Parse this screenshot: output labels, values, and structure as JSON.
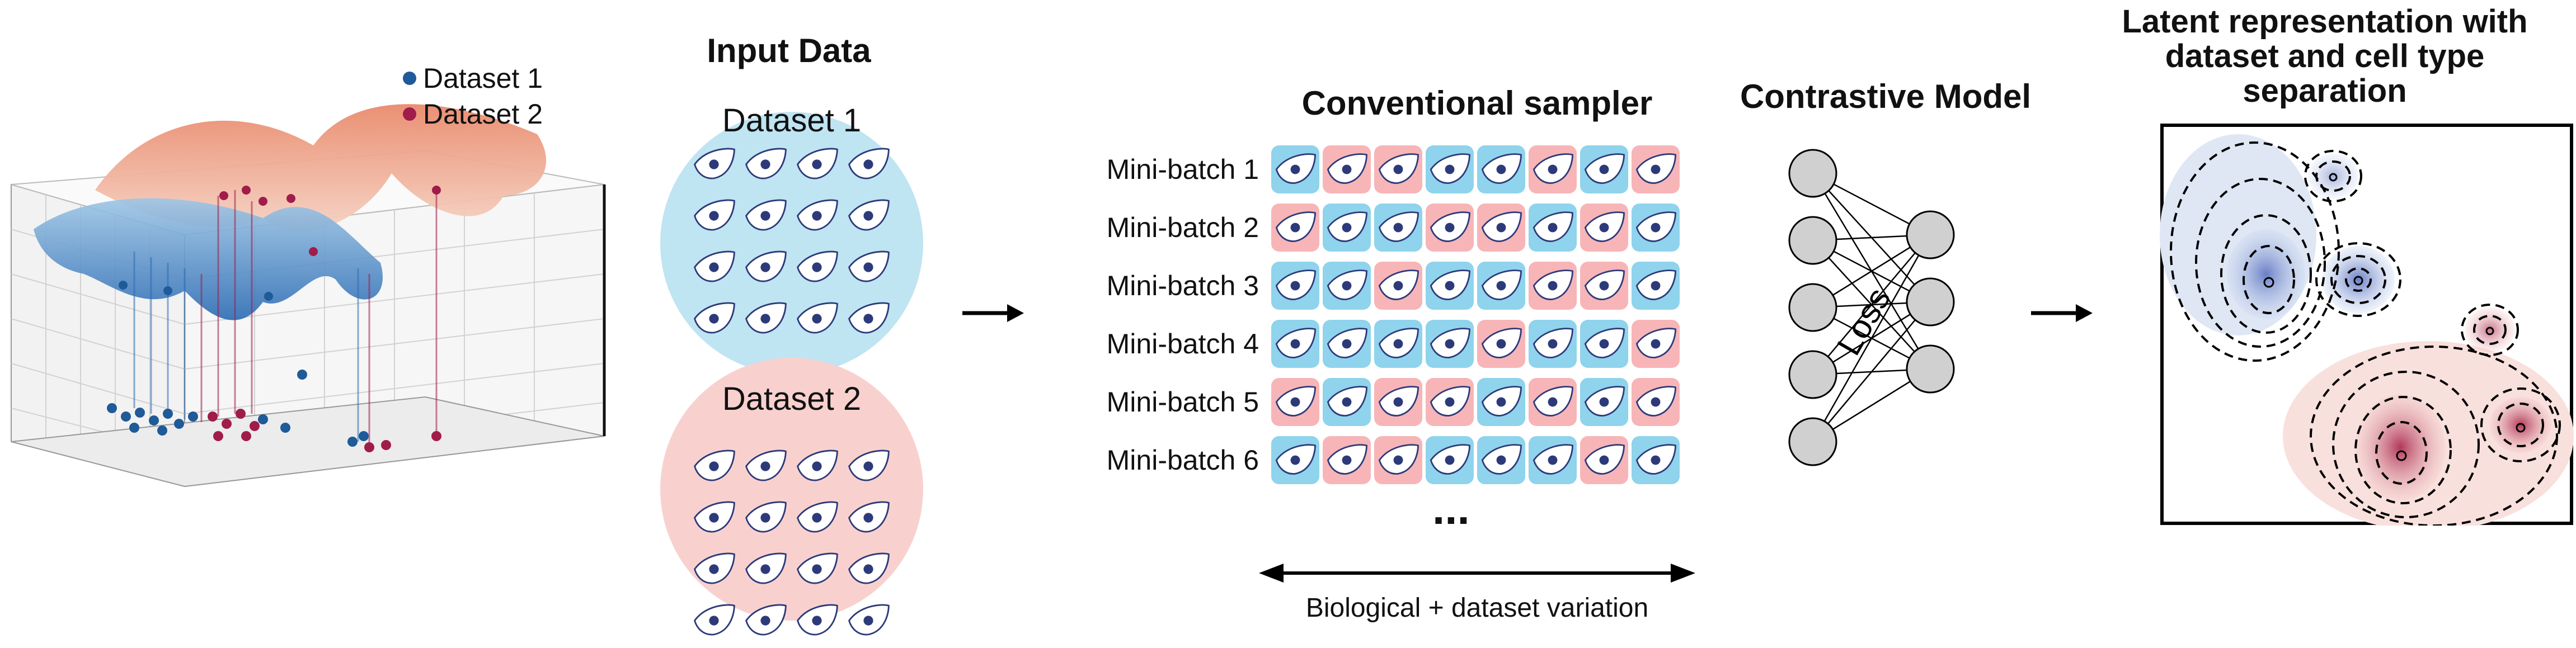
{
  "legend": {
    "items": [
      {
        "label": "Dataset 1",
        "color": "#1f5a99"
      },
      {
        "label": "Dataset 2",
        "color": "#a01c4b"
      }
    ]
  },
  "input_data": {
    "title": "Input Data",
    "dataset1": {
      "label": "Dataset 1",
      "color": "#bfe4f2"
    },
    "dataset2": {
      "label": "Dataset 2",
      "color": "#f8d1cf"
    }
  },
  "sampler": {
    "title": "Conventional sampler",
    "batches": [
      {
        "label": "Mini-batch 1",
        "tiles": [
          "blue",
          "pink",
          "pink",
          "blue",
          "blue",
          "pink",
          "blue",
          "pink"
        ]
      },
      {
        "label": "Mini-batch 2",
        "tiles": [
          "pink",
          "blue",
          "blue",
          "pink",
          "pink",
          "blue",
          "pink",
          "blue"
        ]
      },
      {
        "label": "Mini-batch 3",
        "tiles": [
          "blue",
          "blue",
          "pink",
          "blue",
          "blue",
          "pink",
          "pink",
          "blue"
        ]
      },
      {
        "label": "Mini-batch 4",
        "tiles": [
          "blue",
          "blue",
          "blue",
          "blue",
          "pink",
          "blue",
          "blue",
          "pink"
        ]
      },
      {
        "label": "Mini-batch 5",
        "tiles": [
          "pink",
          "blue",
          "pink",
          "pink",
          "blue",
          "pink",
          "blue",
          "pink"
        ]
      },
      {
        "label": "Mini-batch 6",
        "tiles": [
          "blue",
          "pink",
          "pink",
          "blue",
          "blue",
          "blue",
          "pink",
          "blue"
        ]
      }
    ],
    "ellipsis": "...",
    "axis_label": "Biological + dataset variation",
    "blue": "#8fd3ec",
    "pink": "#f7b5b8"
  },
  "model": {
    "title": "Contrastive Model",
    "loss_label": "Loss"
  },
  "latent": {
    "title_lines": [
      "Latent representation with",
      "dataset and cell type",
      "separation"
    ]
  }
}
